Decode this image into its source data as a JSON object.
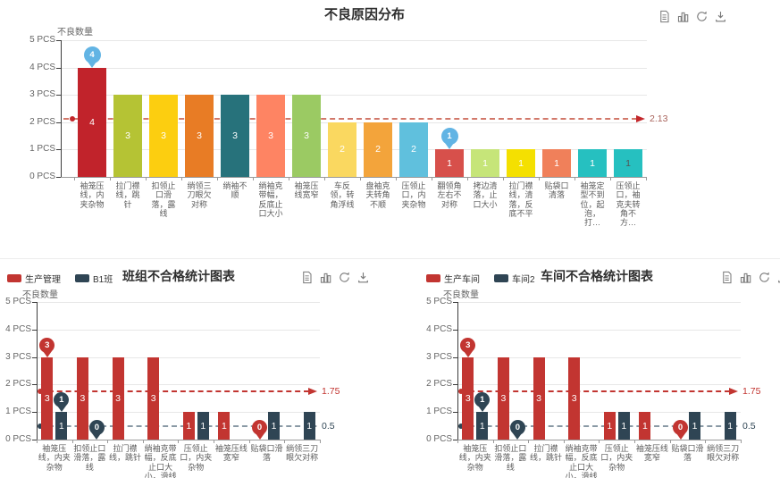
{
  "chart_data": [
    {
      "type": "bar",
      "title": "不良原因分布",
      "ylabel": "不良数量",
      "unit": "PCS",
      "ylim": [
        0,
        5
      ],
      "y_ticks": [
        "5 PCS",
        "4 PCS",
        "3 PCS",
        "2 PCS",
        "1 PCS",
        "0 PCS"
      ],
      "categories": [
        "袖笼压线，内夹杂物",
        "拉门襟线，跳针",
        "扣领止口滑落，露线",
        "绱领三刀眼欠对称",
        "绱袖不顺",
        "绱袖克带幅，反底止口大小",
        "袖笼压线宽窄",
        "车反领，转角浮线",
        "盘袖克夫转角不顺",
        "压领止口，内夹杂物",
        "翻领角左右不对称",
        "拷边清落，止口大小",
        "拉门襟线，清落，反底不平",
        "贴袋口清落",
        "袖笼定型不到位，起泡，打…",
        "压领止口，袖克夫转角不方…"
      ],
      "values": [
        4,
        3,
        3,
        3,
        3,
        3,
        3,
        2,
        2,
        2,
        1,
        1,
        1,
        1,
        1,
        1
      ],
      "bar_colors": [
        "#c1232b",
        "#b5c334",
        "#fcce10",
        "#e87c25",
        "#27727b",
        "#fe8463",
        "#9bca63",
        "#fad860",
        "#f3a43b",
        "#60c0dd",
        "#d7504b",
        "#c6e579",
        "#f4e001",
        "#f0805a",
        "#26c0c0",
        "#26c0c0"
      ],
      "value_label_color": "#ffffff",
      "value_label_overrides": {
        "15": "#555555"
      },
      "mark_point_color": "#62b4e4",
      "mark_points": [
        {
          "index": 0,
          "value": 4
        },
        {
          "index": 10,
          "value": 1
        }
      ],
      "average_line": {
        "value": 2.13,
        "label": "2.13",
        "color": "#d2786a",
        "arrow_color": "#c3272b",
        "label_color": "#a8625a"
      },
      "toolbox": [
        "data-view",
        "bar-chart",
        "refresh",
        "download"
      ]
    },
    {
      "type": "grouped-bar",
      "title": "班组不合格统计图表",
      "ylabel": "不良数量",
      "unit": "PCS",
      "ylim": [
        0,
        5
      ],
      "y_ticks": [
        "5 PCS",
        "4 PCS",
        "3 PCS",
        "2 PCS",
        "1 PCS",
        "0 PCS"
      ],
      "categories": [
        "袖笼压线，内夹杂物",
        "扣领止口滑落，露线",
        "拉门襟线，跳针",
        "绱袖克带幅，反底止口大小，滑线",
        "压领止口，内夹杂物",
        "袖笼压线宽窄",
        "贴袋口滑落",
        "绱领三刀眼欠对称"
      ],
      "series": [
        {
          "name": "生产管理",
          "color": "#c23531",
          "values": [
            3,
            3,
            3,
            3,
            1,
            1,
            0,
            0
          ],
          "mark_points": [
            {
              "index": 0,
              "value": 3
            },
            {
              "index": 6,
              "value": 0
            }
          ],
          "average": 1.75,
          "average_label": "1.75",
          "average_line_color": "#c23531",
          "average_label_color": "#c23531",
          "average_arrow_color": "#c23531"
        },
        {
          "name": "B1班",
          "color": "#2f4554",
          "values": [
            1,
            0,
            0,
            0,
            1,
            0,
            1,
            1
          ],
          "mark_points": [
            {
              "index": 0,
              "value": 1
            },
            {
              "index": 1,
              "value": 0
            }
          ],
          "average": 0.5,
          "average_label": "0.5",
          "average_line_color": "#8a99a5",
          "average_label_color": "#2f4554",
          "average_arrow_color": "#2f4554"
        }
      ],
      "toolbox": [
        "data-view",
        "bar-chart",
        "refresh",
        "download"
      ]
    },
    {
      "type": "grouped-bar",
      "title": "车间不合格统计图表",
      "ylabel": "不良数量",
      "unit": "PCS",
      "ylim": [
        0,
        5
      ],
      "y_ticks": [
        "5 PCS",
        "4 PCS",
        "3 PCS",
        "2 PCS",
        "1 PCS",
        "0 PCS"
      ],
      "categories": [
        "袖笼压线，内夹杂物",
        "扣领止口滑落，露线",
        "拉门襟线，跳针",
        "绱袖克带幅，反底止口大小，滑线",
        "压领止口，内夹杂物",
        "袖笼压线宽窄",
        "贴袋口滑落",
        "绱领三刀眼欠对称"
      ],
      "series": [
        {
          "name": "生产车间",
          "color": "#c23531",
          "values": [
            3,
            3,
            3,
            3,
            1,
            1,
            0,
            0
          ],
          "mark_points": [
            {
              "index": 0,
              "value": 3
            },
            {
              "index": 6,
              "value": 0
            }
          ],
          "average": 1.75,
          "average_label": "1.75",
          "average_line_color": "#c23531",
          "average_label_color": "#c23531",
          "average_arrow_color": "#c23531"
        },
        {
          "name": "车间2",
          "color": "#2f4554",
          "values": [
            1,
            0,
            0,
            0,
            1,
            0,
            1,
            1
          ],
          "mark_points": [
            {
              "index": 0,
              "value": 1
            },
            {
              "index": 1,
              "value": 0
            }
          ],
          "average": 0.5,
          "average_label": "0.5",
          "average_line_color": "#8a99a5",
          "average_label_color": "#2f4554",
          "average_arrow_color": "#2f4554"
        }
      ],
      "toolbox": [
        "data-view",
        "bar-chart",
        "refresh",
        "download"
      ]
    }
  ]
}
